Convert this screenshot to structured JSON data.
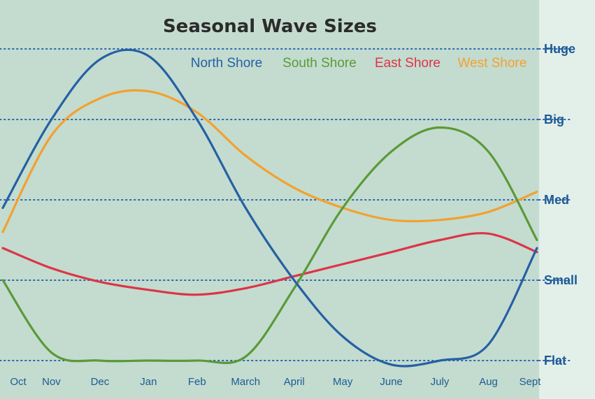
{
  "chart_data": {
    "type": "line",
    "title": "Seasonal Wave Sizes",
    "categories": [
      "Oct",
      "Nov",
      "Dec",
      "Jan",
      "Feb",
      "March",
      "April",
      "May",
      "June",
      "July",
      "Aug",
      "Sept"
    ],
    "y_levels": [
      "Flat",
      "Small",
      "Med",
      "Big",
      "Huge"
    ],
    "ylim": [
      0,
      4
    ],
    "grid": "horizontal dotted",
    "legend_position": "top-right",
    "series": [
      {
        "name": "North Shore",
        "color": "#2660a4",
        "values": [
          1.9,
          3.0,
          3.85,
          3.9,
          3.0,
          1.9,
          1.0,
          0.3,
          -0.05,
          0.0,
          0.2,
          1.4
        ]
      },
      {
        "name": "South Shore",
        "color": "#5a9a38",
        "values": [
          1.0,
          0.1,
          0.0,
          0.0,
          0.0,
          0.05,
          0.9,
          1.9,
          2.6,
          2.9,
          2.6,
          1.5
        ]
      },
      {
        "name": "East Shore",
        "color": "#dd3448",
        "values": [
          1.4,
          1.15,
          0.98,
          0.88,
          0.82,
          0.9,
          1.05,
          1.2,
          1.35,
          1.5,
          1.58,
          1.35
        ]
      },
      {
        "name": "West Shore",
        "color": "#f4a030",
        "values": [
          1.6,
          2.8,
          3.3,
          3.4,
          3.1,
          2.55,
          2.15,
          1.9,
          1.75,
          1.75,
          1.85,
          2.1
        ]
      }
    ]
  }
}
